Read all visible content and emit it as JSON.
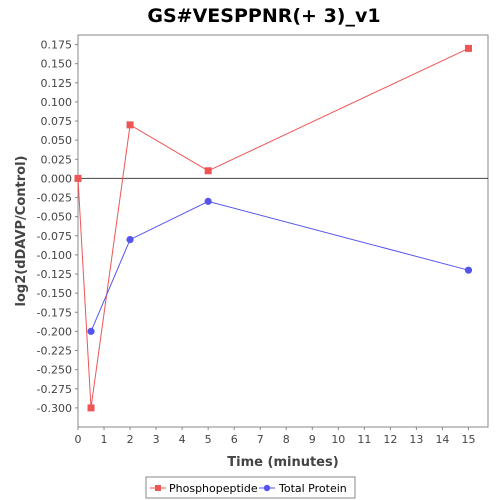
{
  "chart_data": {
    "type": "line",
    "title": "GS#VESPPNR(+ 3)_v1",
    "xlabel": "Time (minutes)",
    "ylabel": "log2(dDAVP/Control)",
    "xlim": [
      0,
      15.75
    ],
    "ylim": [
      -0.325,
      0.1875
    ],
    "x_ticks": [
      "0",
      "1",
      "2",
      "3",
      "4",
      "5",
      "6",
      "7",
      "8",
      "9",
      "10",
      "11",
      "12",
      "13",
      "14",
      "15"
    ],
    "y_ticks": [
      "0.175",
      "0.150",
      "0.125",
      "0.100",
      "0.075",
      "0.050",
      "0.025",
      "0.000",
      "-0.025",
      "-0.050",
      "-0.075",
      "-0.100",
      "-0.125",
      "-0.150",
      "-0.175",
      "-0.200",
      "-0.225",
      "-0.250",
      "-0.275",
      "-0.300"
    ],
    "grid": false,
    "zero_line": true,
    "legend_position": "bottom",
    "series": [
      {
        "name": "Phosphopeptide",
        "color": "#ee5555",
        "marker": "square",
        "points": [
          [
            0,
            0.0
          ],
          [
            0.5,
            -0.3
          ],
          [
            2,
            0.07
          ],
          [
            5,
            0.01
          ],
          [
            15,
            0.17
          ]
        ]
      },
      {
        "name": "Total Protein",
        "color": "#5555ee",
        "marker": "circle",
        "points": [
          [
            0.5,
            -0.2
          ],
          [
            2,
            -0.08
          ],
          [
            5,
            -0.03
          ],
          [
            15,
            -0.12
          ]
        ]
      }
    ]
  }
}
